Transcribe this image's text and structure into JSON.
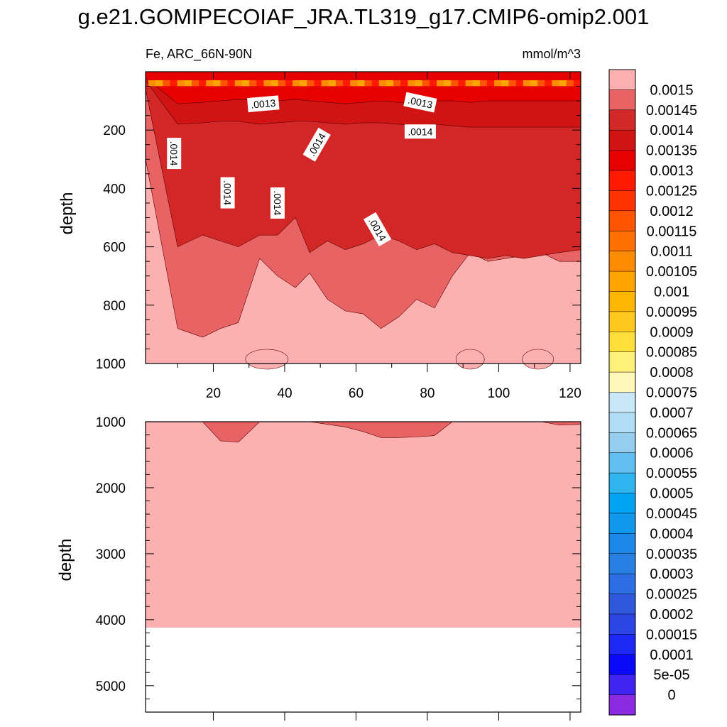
{
  "title": "g.e21.GOMIPECOIAF_JRA.TL319_g17.CMIP6-omip2.001",
  "chart_data": [
    {
      "type": "contour",
      "panel": "upper",
      "variable_label": "Fe, ARC_66N-90N",
      "units": "mmol/m^3",
      "ylabel": "depth",
      "xlim": [
        1,
        123
      ],
      "ylim": [
        1000,
        0
      ],
      "xticks": [
        20,
        40,
        60,
        80,
        100,
        120
      ],
      "yticks": [
        200,
        400,
        600,
        800,
        1000
      ],
      "contour_labels": [
        ".0013",
        ".0013",
        ".0014",
        ".0014",
        ".0014",
        ".0014",
        ".0014",
        ".0014"
      ],
      "x": [
        1,
        10,
        17,
        22,
        27,
        33,
        38,
        43,
        47,
        52,
        57,
        62,
        67,
        72,
        77,
        82,
        87,
        92,
        97,
        102,
        107,
        112,
        117,
        123
      ],
      "boundaries": {
        "surface_max_depth": [
          10,
          30,
          30,
          30,
          30,
          30,
          30,
          30,
          30,
          30,
          30,
          30,
          30,
          30,
          30,
          30,
          30,
          30,
          30,
          30,
          30,
          30,
          30,
          30
        ],
        "b00135_depth": [
          20,
          110,
          105,
          100,
          95,
          100,
          100,
          95,
          100,
          105,
          110,
          105,
          100,
          105,
          105,
          100,
          100,
          105,
          100,
          100,
          100,
          100,
          100,
          100
        ],
        "b0014_depth": [
          30,
          180,
          175,
          170,
          170,
          180,
          175,
          170,
          170,
          175,
          180,
          175,
          175,
          180,
          185,
          180,
          185,
          190,
          190,
          190,
          190,
          190,
          190,
          190
        ],
        "b00145_depth": [
          60,
          600,
          560,
          580,
          600,
          560,
          560,
          500,
          620,
          580,
          610,
          590,
          560,
          580,
          610,
          590,
          620,
          630,
          640,
          630,
          640,
          630,
          620,
          610
        ],
        "b0015_depth": [
          300,
          880,
          910,
          880,
          860,
          640,
          700,
          740,
          690,
          780,
          820,
          830,
          880,
          840,
          780,
          810,
          700,
          620,
          650,
          640,
          630,
          620,
          650,
          650
        ]
      }
    },
    {
      "type": "contour",
      "panel": "lower",
      "ylabel": "depth",
      "xlim": [
        1,
        123
      ],
      "ylim": [
        5400,
        1000
      ],
      "yticks": [
        1000,
        2000,
        3000,
        4000,
        5000
      ],
      "x": [
        1,
        10,
        17,
        22,
        27,
        33,
        38,
        43,
        47,
        52,
        57,
        62,
        67,
        72,
        77,
        82,
        87,
        92,
        97,
        102,
        107,
        112,
        117,
        123
      ],
      "b0015_depth": [
        1000,
        1000,
        1000,
        1290,
        1310,
        1000,
        1000,
        1000,
        1000,
        1040,
        1080,
        1150,
        1240,
        1240,
        1230,
        1210,
        1000,
        1000,
        1000,
        1000,
        1000,
        1000,
        1050,
        1040
      ],
      "seafloor_depth": 4120
    }
  ],
  "colorbar": {
    "labels": [
      "0.0015",
      "0.00145",
      "0.0014",
      "0.00135",
      "0.0013",
      "0.00125",
      "0.0012",
      "0.00115",
      "0.0011",
      "0.00105",
      "0.001",
      "0.00095",
      "0.0009",
      "0.00085",
      "0.0008",
      "0.00075",
      "0.0007",
      "0.00065",
      "0.0006",
      "0.00055",
      "0.0005",
      "0.00045",
      "0.0004",
      "0.00035",
      "0.0003",
      "0.00025",
      "0.0002",
      "0.00015",
      "0.0001",
      "5e-05",
      "0"
    ],
    "colors": [
      "#fdb0b0",
      "#e86464",
      "#d22828",
      "#d01414",
      "#e60000",
      "#ff1a00",
      "#ff3300",
      "#ff5500",
      "#ff7000",
      "#ff8c00",
      "#ffa400",
      "#ffb600",
      "#ffc81e",
      "#ffde3c",
      "#fff07a",
      "#fff8b8",
      "#c8e8f8",
      "#b0ddf4",
      "#94cdee",
      "#60bff0",
      "#2eb4ef",
      "#00a2f2",
      "#1098ec",
      "#1e88e8",
      "#2880e4",
      "#2c6ee4",
      "#3058dc",
      "#2c46e4",
      "#1e28f4",
      "#0a0af8",
      "#4024f0",
      "#8a2be2"
    ]
  },
  "colors": {
    "c00135": "#d01414",
    "c0014": "#d32626",
    "c00145": "#e86464",
    "c0015": "#fdb0b0",
    "surface": [
      "#ff8c00",
      "#ffa400",
      "#ff5500",
      "#ff1a00"
    ]
  }
}
